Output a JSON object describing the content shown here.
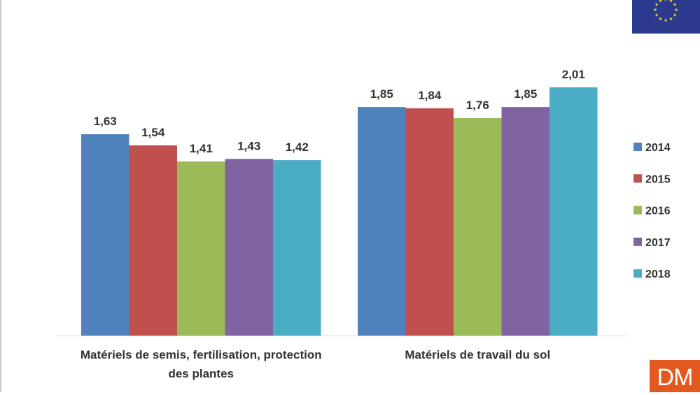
{
  "chart_data": {
    "type": "bar",
    "categories": [
      [
        "Matériels de semis, fertilisation, protection",
        "des plantes"
      ],
      [
        "Matériels de travail du sol"
      ]
    ],
    "series": [
      {
        "name": "2014",
        "color": "#4f81bd",
        "values": [
          1.63,
          1.85
        ],
        "labels": [
          "1,63",
          "1,85"
        ]
      },
      {
        "name": "2015",
        "color": "#c0504d",
        "values": [
          1.54,
          1.84
        ],
        "labels": [
          "1,54",
          "1,84"
        ]
      },
      {
        "name": "2016",
        "color": "#9bbb59",
        "values": [
          1.41,
          1.76
        ],
        "labels": [
          "1,41",
          "1,76"
        ]
      },
      {
        "name": "2017",
        "color": "#8064a2",
        "values": [
          1.43,
          1.85
        ],
        "labels": [
          "1,43",
          "1,85"
        ]
      },
      {
        "name": "2018",
        "color": "#4bacc6",
        "values": [
          1.42,
          2.01
        ],
        "labels": [
          "1,42",
          "2,01"
        ]
      }
    ],
    "ylim": [
      0,
      2.2
    ],
    "grid": false,
    "legend_position": "right",
    "axis_color": "#d9d9d9"
  },
  "logos": {
    "eu_flag": {
      "colors": {
        "field": "#2b3a8c",
        "stars": "#f5d327"
      }
    },
    "dm_logo": {
      "text": "DM",
      "color": "#e2581f"
    }
  }
}
